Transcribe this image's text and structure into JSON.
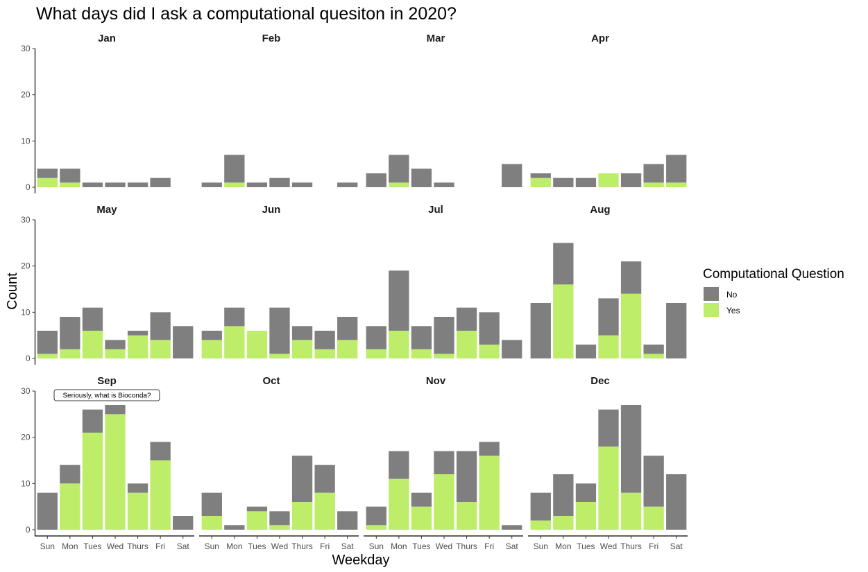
{
  "chart_data": {
    "type": "bar",
    "stacked": true,
    "faceted": true,
    "title": "What days did I ask a computational quesiton in 2020?",
    "xlabel": "Weekday",
    "ylabel": "Count",
    "ylim": [
      0,
      30
    ],
    "yticks": [
      0,
      10,
      20,
      30
    ],
    "categories": [
      "Sun",
      "Mon",
      "Tues",
      "Wed",
      "Thurs",
      "Fri",
      "Sat"
    ],
    "legend": {
      "title": "Computational Question",
      "position": "right",
      "entries": [
        {
          "label": "No",
          "color": "#7f7f7f"
        },
        {
          "label": "Yes",
          "color": "#bded69"
        }
      ]
    },
    "colors": {
      "No": "#7f7f7f",
      "Yes": "#bded69"
    },
    "facets": [
      {
        "name": "Jan",
        "yes": [
          2,
          1,
          0,
          0,
          0,
          0,
          0
        ],
        "no": [
          2,
          3,
          1,
          1,
          1,
          2,
          0
        ]
      },
      {
        "name": "Feb",
        "yes": [
          0,
          1,
          0,
          0,
          0,
          0,
          0
        ],
        "no": [
          1,
          6,
          1,
          2,
          1,
          0,
          1
        ]
      },
      {
        "name": "Mar",
        "yes": [
          0,
          1,
          0,
          0,
          0,
          0,
          0
        ],
        "no": [
          3,
          6,
          4,
          1,
          0,
          0,
          5
        ]
      },
      {
        "name": "Apr",
        "yes": [
          2,
          0,
          0,
          3,
          0,
          1,
          1
        ],
        "no": [
          1,
          2,
          2,
          0,
          3,
          4,
          6
        ]
      },
      {
        "name": "May",
        "yes": [
          1,
          2,
          6,
          2,
          5,
          4,
          0
        ],
        "no": [
          5,
          7,
          5,
          2,
          1,
          6,
          7
        ]
      },
      {
        "name": "Jun",
        "yes": [
          4,
          7,
          6,
          1,
          4,
          2,
          4
        ],
        "no": [
          2,
          4,
          0,
          10,
          3,
          4,
          5
        ]
      },
      {
        "name": "Jul",
        "yes": [
          2,
          6,
          2,
          1,
          6,
          3,
          0
        ],
        "no": [
          5,
          13,
          5,
          8,
          5,
          7,
          4
        ]
      },
      {
        "name": "Aug",
        "yes": [
          0,
          16,
          0,
          5,
          14,
          1,
          0
        ],
        "no": [
          12,
          9,
          3,
          8,
          7,
          2,
          12
        ]
      },
      {
        "name": "Sep",
        "yes": [
          0,
          10,
          21,
          25,
          8,
          15,
          0
        ],
        "no": [
          8,
          4,
          5,
          2,
          2,
          4,
          3
        ]
      },
      {
        "name": "Oct",
        "yes": [
          3,
          0,
          4,
          1,
          6,
          8,
          0
        ],
        "no": [
          5,
          1,
          1,
          3,
          10,
          6,
          4
        ]
      },
      {
        "name": "Nov",
        "yes": [
          1,
          11,
          5,
          12,
          6,
          16,
          0
        ],
        "no": [
          4,
          6,
          3,
          5,
          11,
          3,
          1
        ]
      },
      {
        "name": "Dec",
        "yes": [
          2,
          3,
          6,
          18,
          8,
          5,
          0
        ],
        "no": [
          6,
          9,
          4,
          8,
          19,
          11,
          12
        ]
      }
    ],
    "annotation": {
      "facet": "Sep",
      "category": "Wed",
      "text": "Seriously, what is Bioconda?"
    }
  }
}
